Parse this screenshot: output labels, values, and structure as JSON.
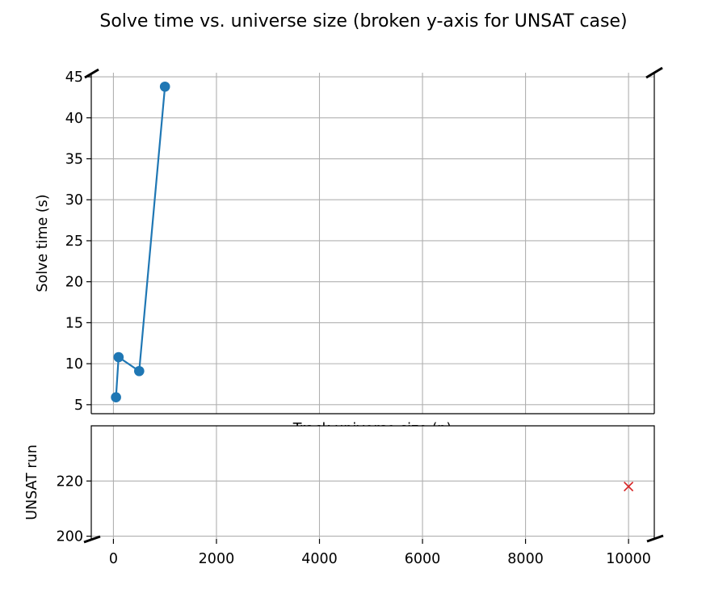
{
  "chart_data": {
    "type": "line",
    "title": "Solve time vs. universe size (broken y-axis for UNSAT case)",
    "xlabel": "Track universe size (n)",
    "xlim": [
      -430,
      10500
    ],
    "x_ticks": [
      0,
      2000,
      4000,
      6000,
      8000,
      10000
    ],
    "top_panel": {
      "ylabel": "Solve time (s)",
      "ylim": [
        3.9,
        45.5
      ],
      "y_ticks": [
        5,
        10,
        15,
        20,
        25,
        30,
        35,
        40,
        45
      ],
      "grid": true,
      "series": [
        {
          "color": "#1f77b4",
          "marker": "circle",
          "points": [
            {
              "x": 50,
              "y": 5.9
            },
            {
              "x": 100,
              "y": 10.8
            },
            {
              "x": 500,
              "y": 9.1
            },
            {
              "x": 1000,
              "y": 43.8
            }
          ]
        }
      ]
    },
    "bottom_panel": {
      "ylabel": "UNSAT run",
      "ylim": [
        199,
        240
      ],
      "y_ticks": [
        200,
        220
      ],
      "grid": true,
      "series": [
        {
          "color": "#d62728",
          "marker": "x",
          "points": [
            {
              "x": 10000,
              "y": 218
            }
          ]
        }
      ]
    }
  }
}
